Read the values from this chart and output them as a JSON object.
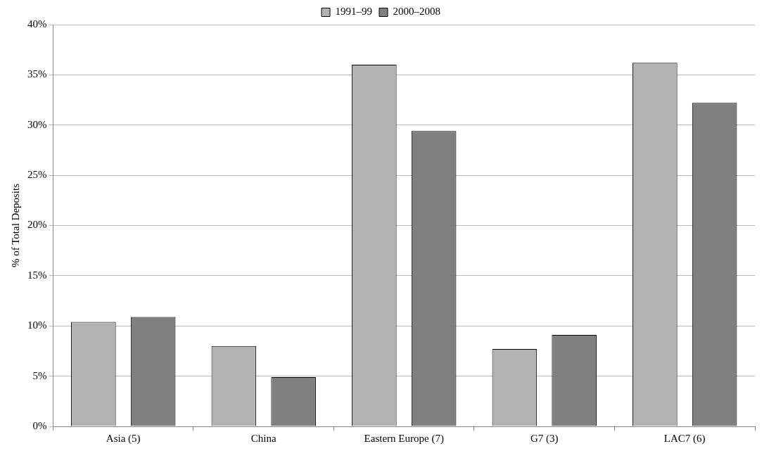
{
  "chart_data": {
    "type": "bar",
    "ylabel": "% of Total Deposits",
    "categories": [
      "Asia (5)",
      "China",
      "Eastern Europe (7)",
      "G7 (3)",
      "LAC7 (6)"
    ],
    "series": [
      {
        "name": "1991–99",
        "color": "#b3b3b3",
        "values": [
          10.4,
          8.0,
          36.0,
          7.7,
          36.2
        ]
      },
      {
        "name": "2000–2008",
        "color": "#808080",
        "values": [
          10.9,
          4.9,
          29.4,
          9.1,
          32.2
        ]
      }
    ],
    "ylim": [
      0,
      40
    ],
    "yticks": [
      {
        "value": 0,
        "label": "0%"
      },
      {
        "value": 5,
        "label": "5%"
      },
      {
        "value": 10,
        "label": "10%"
      },
      {
        "value": 15,
        "label": "15%"
      },
      {
        "value": 20,
        "label": "20%"
      },
      {
        "value": 25,
        "label": "25%"
      },
      {
        "value": 30,
        "label": "30%"
      },
      {
        "value": 35,
        "label": "35%"
      },
      {
        "value": 40,
        "label": "40%"
      }
    ],
    "grid": "y",
    "legend": "top"
  }
}
